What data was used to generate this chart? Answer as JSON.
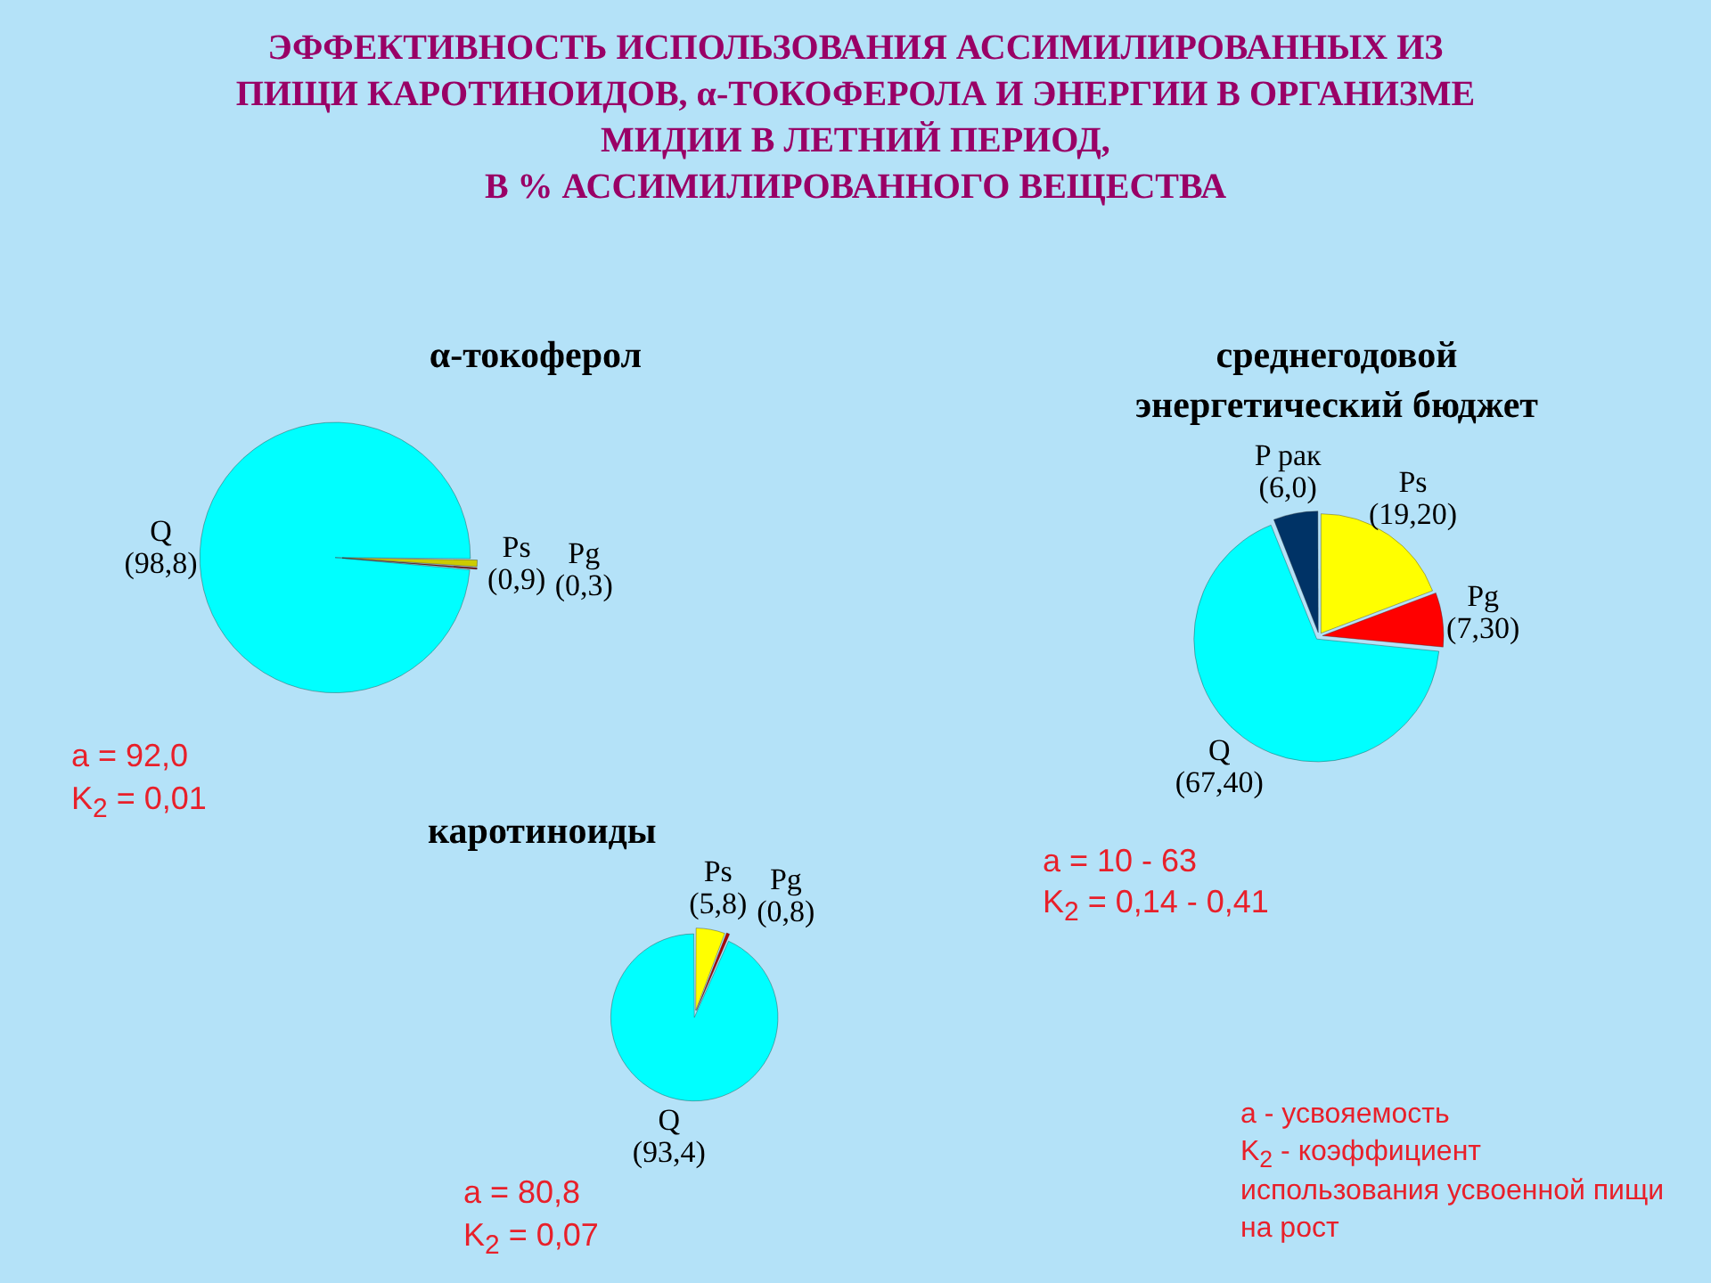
{
  "chart_data": [
    {
      "type": "other",
      "title": "ЭФФЕКТИВНОСТЬ ИСПОЛЬЗОВАНИЯ АССИМИЛИРОВАННЫХ ИЗ\nПИЩИ КАРОТИНОИДОВ, α-ТОКОФЕРОЛА И ЭНЕРГИИ В ОРГАНИЗМЕ\nМИДИИ В ЛЕТНИЙ ПЕРИОД,\nВ % АССИМИЛИРОВАННОГО ВЕЩЕСТВА"
    },
    {
      "type": "pie",
      "title": "α-токоферол",
      "categories": [
        "Q",
        "Ps",
        "Pg"
      ],
      "values": [
        98.8,
        0.9,
        0.3
      ],
      "value_labels": [
        "(98,8)",
        "(0,9)",
        "(0,3)"
      ],
      "colors": [
        "#00ffff",
        "#cccc00",
        "#800000"
      ],
      "annotations": [
        "a = 92,0",
        "K$_{2}$ = 0,01"
      ]
    },
    {
      "type": "pie",
      "title": "среднегодовой\nэнергетический бюджет",
      "categories": [
        "Ps",
        "Pg",
        "Q",
        "P рак"
      ],
      "values": [
        19.2,
        7.3,
        67.4,
        6.0
      ],
      "value_labels": [
        "(19,20)",
        "(7,30)",
        "(67,40)",
        "(6,0)"
      ],
      "colors": [
        "#ffff00",
        "#ff0000",
        "#00ffff",
        "#003366"
      ],
      "annotations": [
        "a = 10 - 63",
        "K$_{2}$ = 0,14 - 0,41"
      ]
    },
    {
      "type": "pie",
      "title": "каротиноиды",
      "categories": [
        "Ps",
        "Pg",
        "Q"
      ],
      "values": [
        5.8,
        0.8,
        93.4
      ],
      "value_labels": [
        "(5,8)",
        "(0,8)",
        "(93,4)"
      ],
      "colors": [
        "#ffff00",
        "#b00000",
        "#00ffff"
      ],
      "annotations": [
        "a = 80,8",
        "K$_{2}$ = 0,07"
      ]
    },
    {
      "type": "other",
      "annotations": [
        "a - усвояемость",
        "K$_{2}$ - коэффициент использования усвоенной пищи на рост"
      ]
    }
  ]
}
